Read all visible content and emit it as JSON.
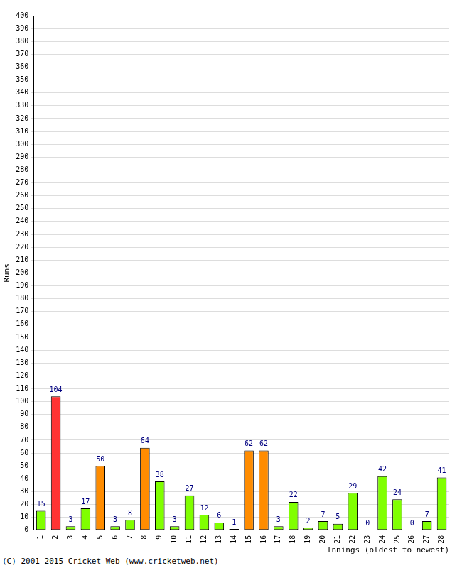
{
  "chart_data": {
    "type": "bar",
    "x_label": "Innings (oldest to newest)",
    "y_label": "Runs",
    "annotations": [
      "(C) 2001-2015 Cricket Web (www.cricketweb.net)"
    ],
    "categories": [
      "1",
      "2",
      "3",
      "4",
      "5",
      "6",
      "7",
      "8",
      "9",
      "10",
      "11",
      "12",
      "13",
      "14",
      "15",
      "16",
      "17",
      "18",
      "19",
      "20",
      "21",
      "22",
      "23",
      "24",
      "25",
      "26",
      "27",
      "28"
    ],
    "values": [
      15,
      104,
      3,
      17,
      50,
      3,
      8,
      64,
      38,
      3,
      27,
      12,
      6,
      1,
      62,
      62,
      3,
      22,
      2,
      7,
      5,
      29,
      0,
      42,
      24,
      0,
      7,
      41
    ],
    "colors": [
      "#80ff00",
      "#ff3333",
      "#80ff00",
      "#80ff00",
      "#ff8c00",
      "#80ff00",
      "#80ff00",
      "#ff8c00",
      "#80ff00",
      "#80ff00",
      "#80ff00",
      "#80ff00",
      "#80ff00",
      "#80ff00",
      "#ff8c00",
      "#ff8c00",
      "#80ff00",
      "#80ff00",
      "#80ff00",
      "#80ff00",
      "#80ff00",
      "#80ff00",
      "#80ff00",
      "#80ff00",
      "#80ff00",
      "#80ff00",
      "#80ff00",
      "#80ff00"
    ],
    "ylim": [
      0,
      400
    ],
    "yticks": [
      0,
      10,
      20,
      30,
      40,
      50,
      60,
      70,
      80,
      90,
      100,
      110,
      120,
      130,
      140,
      150,
      160,
      170,
      180,
      190,
      200,
      210,
      220,
      230,
      240,
      250,
      260,
      270,
      280,
      290,
      300,
      310,
      320,
      330,
      340,
      350,
      360,
      370,
      380,
      390,
      400
    ],
    "grid": true,
    "data_labels": true
  }
}
